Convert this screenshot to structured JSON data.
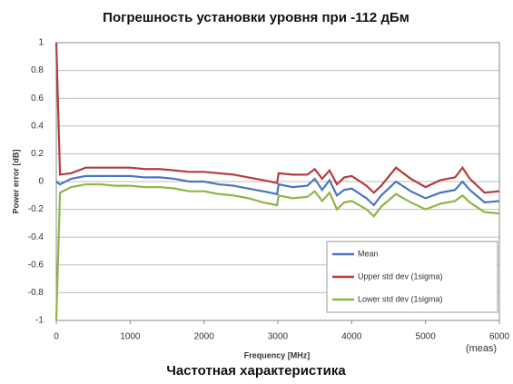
{
  "chart_data": {
    "type": "line",
    "title": "Погрешность установки уровня при -112 дБм",
    "caption": "Частотная характеристика",
    "x_label": "Frequency [MHz]",
    "y_label": "Power error [dB]",
    "annotation": "(meas)",
    "x": [
      0,
      50,
      200,
      400,
      600,
      800,
      1000,
      1200,
      1400,
      1600,
      1800,
      2000,
      2200,
      2400,
      2600,
      2800,
      2990,
      3010,
      3200,
      3400,
      3500,
      3600,
      3700,
      3800,
      3900,
      4000,
      4200,
      4300,
      4400,
      4600,
      4800,
      5000,
      5200,
      5400,
      5500,
      5600,
      5800,
      6000
    ],
    "series": [
      {
        "name": "Mean",
        "color": "#4a74c0",
        "values": [
          0,
          -0.02,
          0.02,
          0.04,
          0.04,
          0.04,
          0.04,
          0.03,
          0.03,
          0.02,
          0,
          0,
          -0.02,
          -0.03,
          -0.05,
          -0.07,
          -0.09,
          -0.02,
          -0.04,
          -0.03,
          0.02,
          -0.06,
          0.01,
          -0.1,
          -0.06,
          -0.05,
          -0.12,
          -0.17,
          -0.1,
          0,
          -0.07,
          -0.12,
          -0.08,
          -0.06,
          0,
          -0.06,
          -0.15,
          -0.14
        ]
      },
      {
        "name": "Upper std dev (1sigma)",
        "color": "#b43c3c",
        "values": [
          1,
          0.05,
          0.06,
          0.1,
          0.1,
          0.1,
          0.1,
          0.09,
          0.09,
          0.08,
          0.07,
          0.07,
          0.06,
          0.05,
          0.03,
          0.01,
          -0.01,
          0.06,
          0.05,
          0.05,
          0.09,
          0.02,
          0.08,
          -0.02,
          0.03,
          0.04,
          -0.03,
          -0.08,
          -0.03,
          0.1,
          0.02,
          -0.04,
          0.01,
          0.03,
          0.1,
          0.02,
          -0.08,
          -0.07
        ]
      },
      {
        "name": "Lower std dev (1sigma)",
        "color": "#8fb545",
        "values": [
          -1,
          -0.08,
          -0.04,
          -0.02,
          -0.02,
          -0.03,
          -0.03,
          -0.04,
          -0.04,
          -0.05,
          -0.07,
          -0.07,
          -0.09,
          -0.1,
          -0.12,
          -0.15,
          -0.17,
          -0.1,
          -0.12,
          -0.11,
          -0.07,
          -0.14,
          -0.08,
          -0.2,
          -0.15,
          -0.14,
          -0.2,
          -0.25,
          -0.18,
          -0.09,
          -0.15,
          -0.2,
          -0.16,
          -0.14,
          -0.1,
          -0.15,
          -0.22,
          -0.23
        ]
      }
    ],
    "xlim": [
      0,
      6000
    ],
    "xticks": [
      0,
      1000,
      2000,
      3000,
      4000,
      5000,
      6000
    ],
    "ylim": [
      -1,
      1
    ],
    "yticks": [
      -1,
      -0.8,
      -0.6,
      -0.4,
      -0.2,
      0,
      0.2,
      0.4,
      0.6,
      0.8,
      1
    ],
    "grid": true,
    "legend": "lower right"
  }
}
